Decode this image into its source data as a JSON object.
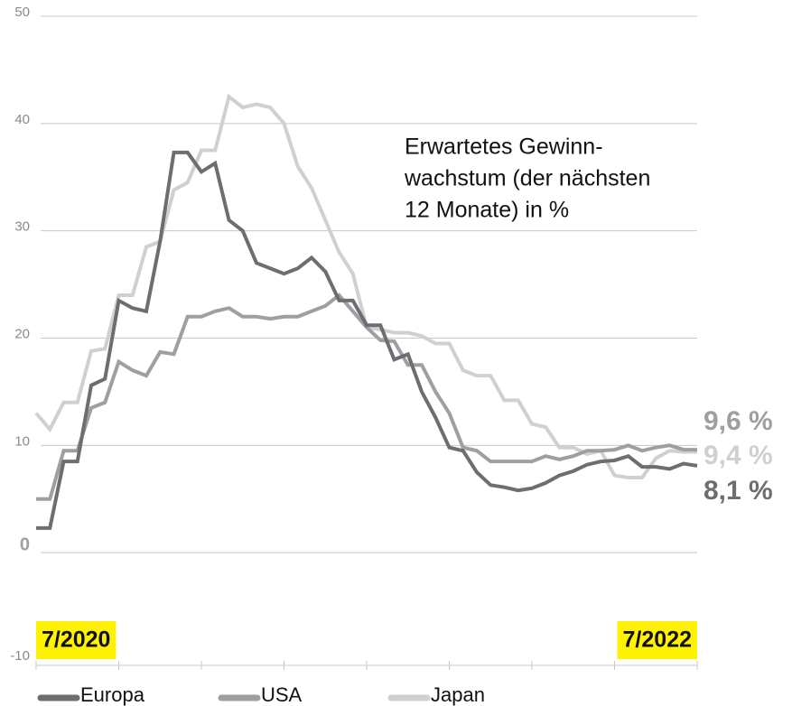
{
  "chart_data": {
    "type": "line",
    "annotation": [
      "Erwartetes Gewinn-",
      "wachstum (der nächsten",
      "12 Monate) in %"
    ],
    "xlim": [
      0,
      24
    ],
    "xticks": [
      0,
      3,
      6,
      9,
      12,
      15,
      18,
      21,
      24
    ],
    "xtick_labels": [
      {
        "value": 0,
        "label": "7/2020"
      },
      {
        "value": 24,
        "label": "7/2022"
      }
    ],
    "x": [
      0,
      0.5,
      1,
      1.5,
      2,
      2.5,
      3,
      3.5,
      4,
      4.5,
      5,
      5.5,
      6,
      6.5,
      7,
      7.5,
      8,
      8.5,
      9,
      9.5,
      10,
      10.5,
      11,
      11.5,
      12,
      12.5,
      13,
      13.5,
      14,
      14.5,
      15,
      15.5,
      16,
      16.5,
      17,
      17.5,
      18,
      18.5,
      19,
      19.5,
      20,
      20.5,
      21,
      21.5,
      22,
      22.5,
      23,
      23.5,
      24
    ],
    "ylim": [
      -10,
      50
    ],
    "yticks": [
      -10,
      0,
      10,
      20,
      30,
      40,
      50
    ],
    "bold_zero_tick": true,
    "grid": true,
    "series": [
      {
        "name": "Europa",
        "color": "#6d6e71",
        "end_label": "8,1 %",
        "values": [
          2.3,
          2.3,
          8.5,
          8.5,
          15.6,
          16.2,
          23.5,
          22.8,
          22.5,
          29,
          37.3,
          37.3,
          35.5,
          36.3,
          31,
          30,
          27,
          26.5,
          26,
          26.5,
          27.5,
          26.2,
          23.5,
          23.5,
          21.2,
          21.2,
          18,
          18.5,
          15,
          12.6,
          9.8,
          9.5,
          7.5,
          6.3,
          6.1,
          5.8,
          6,
          6.5,
          7.2,
          7.6,
          8.2,
          8.5,
          8.6,
          9,
          8,
          8,
          7.8,
          8.3,
          8.1
        ]
      },
      {
        "name": "USA",
        "color": "#9d9fa2",
        "end_label": "9,6 %",
        "values": [
          5,
          5,
          9.5,
          9.5,
          13.5,
          14,
          17.8,
          17,
          16.5,
          18.7,
          18.5,
          22,
          22,
          22.5,
          22.8,
          22,
          22,
          21.8,
          22,
          22,
          22.5,
          23,
          24,
          22.5,
          21,
          19.8,
          19.7,
          17.5,
          17.5,
          15,
          13,
          9.8,
          9.5,
          8.5,
          8.5,
          8.5,
          8.5,
          9,
          8.7,
          9,
          9.5,
          9.5,
          9.6,
          10,
          9.5,
          9.8,
          10,
          9.6,
          9.6
        ]
      },
      {
        "name": "Japan",
        "color": "#cfd0d2",
        "end_label": "9,4 %",
        "values": [
          13,
          11.5,
          14,
          14,
          18.8,
          19,
          24,
          24,
          28.5,
          29,
          33.8,
          34.5,
          37.5,
          37.5,
          42.5,
          41.5,
          41.8,
          41.5,
          40,
          36,
          34,
          31,
          28,
          26,
          21,
          20.8,
          20.5,
          20.5,
          20.2,
          19.5,
          19.5,
          17,
          16.5,
          16.5,
          14.2,
          14.2,
          12,
          11.7,
          9.8,
          9.8,
          9.2,
          9.5,
          7.2,
          7,
          7,
          8.8,
          9.5,
          9.4,
          9.4
        ]
      }
    ]
  }
}
